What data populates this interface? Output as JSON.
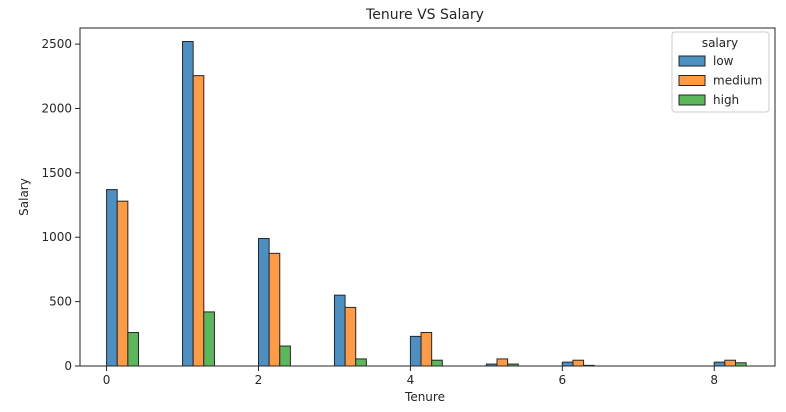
{
  "chart_data": {
    "type": "bar",
    "title": "Tenure VS Salary",
    "xlabel": "Tenure",
    "ylabel": "Salary",
    "xlim": [
      -0.35,
      8.8
    ],
    "ylim": [
      0,
      2625
    ],
    "xticks": [
      0,
      2,
      4,
      6,
      8
    ],
    "yticks": [
      0,
      500,
      1000,
      1500,
      2000,
      2500
    ],
    "grid": false,
    "legend": {
      "title": "salary",
      "placement": "top-right"
    },
    "categories": [
      0,
      1,
      2,
      3,
      4,
      5,
      6,
      8
    ],
    "series": [
      {
        "name": "low",
        "color": "#4c8fc2",
        "values": [
          1370,
          2520,
          990,
          550,
          230,
          15,
          30,
          30
        ]
      },
      {
        "name": "medium",
        "color": "#ff9a45",
        "values": [
          1280,
          2255,
          875,
          455,
          260,
          55,
          45,
          45
        ]
      },
      {
        "name": "high",
        "color": "#5bb75b",
        "values": [
          260,
          420,
          155,
          55,
          45,
          15,
          5,
          25
        ]
      }
    ]
  }
}
